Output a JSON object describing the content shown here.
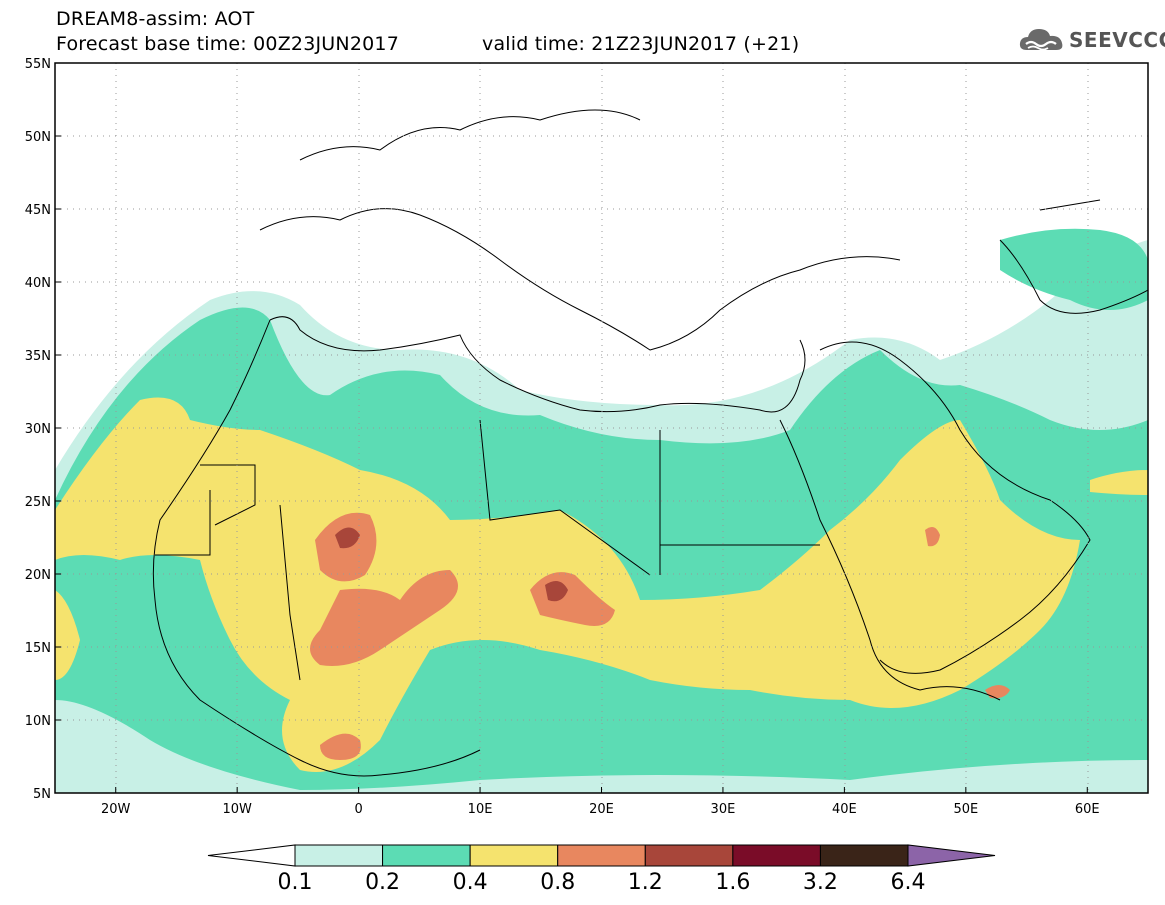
{
  "header": {
    "line1": "DREAM8-assim: AOT",
    "forecast": "Forecast base time: 00Z23JUN2017",
    "valid": "valid time: 21Z23JUN2017 (+21)"
  },
  "logo": {
    "text": "SEEVCCC",
    "icon": "cloud-icon"
  },
  "map": {
    "lon_range": [
      -25,
      65
    ],
    "lat_range": [
      5,
      55
    ],
    "lon_ticks": [
      "20W",
      "10W",
      "0",
      "10E",
      "20E",
      "30E",
      "40E",
      "50E",
      "60E"
    ],
    "lon_tick_values": [
      -20,
      -10,
      0,
      10,
      20,
      30,
      40,
      50,
      60
    ],
    "lat_ticks": [
      "5N",
      "10N",
      "15N",
      "20N",
      "25N",
      "30N",
      "35N",
      "40N",
      "45N",
      "50N",
      "55N"
    ],
    "lat_tick_values": [
      5,
      10,
      15,
      20,
      25,
      30,
      35,
      40,
      45,
      50,
      55
    ],
    "gridlines": "dotted"
  },
  "colorbar": {
    "labels": [
      "0.1",
      "0.2",
      "0.4",
      "0.8",
      "1.2",
      "1.6",
      "3.2",
      "6.4"
    ],
    "colors": [
      "#c8f0e6",
      "#5cdcb4",
      "#f5e36e",
      "#e8875f",
      "#a8463a",
      "#7a0c28",
      "#3a2418"
    ],
    "below_color": "#ffffff",
    "above_color": "#8c64a8"
  }
}
